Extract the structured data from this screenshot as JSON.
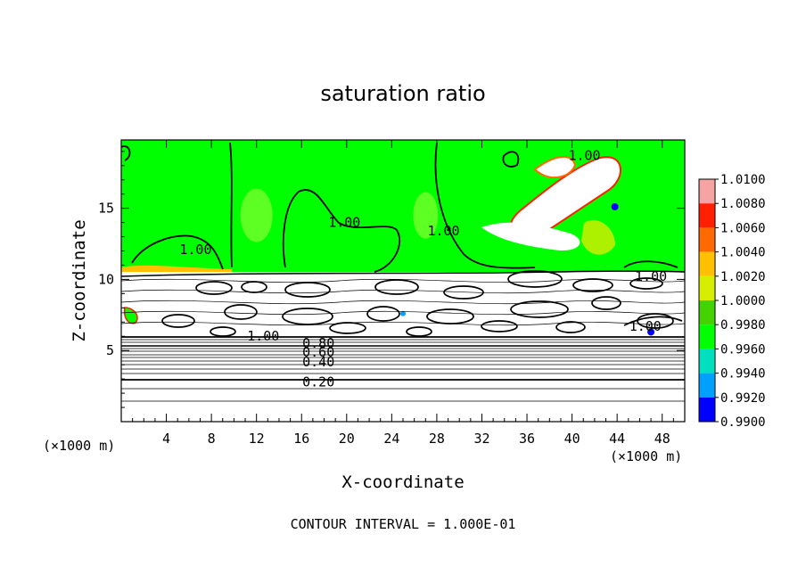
{
  "chart_data": {
    "type": "contour",
    "title": "saturation ratio",
    "xlabel": "X-coordinate",
    "ylabel": "Z-coordinate",
    "x_unit_left": "(×1000 m)",
    "x_unit_right": "(×1000 m)",
    "footer": "CONTOUR INTERVAL = 1.000E-01",
    "xlim": [
      0,
      50
    ],
    "ylim": [
      0,
      19.8
    ],
    "xticks": [
      4,
      8,
      12,
      16,
      20,
      24,
      28,
      32,
      36,
      40,
      44,
      48
    ],
    "yticks": [
      5,
      10,
      15
    ],
    "contour_labels": [
      {
        "text": "1.00",
        "x": 19.8,
        "y": 14.0
      },
      {
        "text": "1.00",
        "x": 6.6,
        "y": 12.1
      },
      {
        "text": "1.00",
        "x": 28.6,
        "y": 13.4
      },
      {
        "text": "1.00",
        "x": 41.1,
        "y": 18.7
      },
      {
        "text": "1.00",
        "x": 47.0,
        "y": 10.2
      },
      {
        "text": "1.00",
        "x": 46.5,
        "y": 6.7
      },
      {
        "text": "1.00",
        "x": 12.6,
        "y": 6.0
      },
      {
        "text": "0.80",
        "x": 17.5,
        "y": 5.5
      },
      {
        "text": "0.60",
        "x": 17.5,
        "y": 4.9
      },
      {
        "text": "0.40",
        "x": 17.5,
        "y": 4.2
      },
      {
        "text": "0.20",
        "x": 17.5,
        "y": 2.8
      }
    ],
    "colorbar": {
      "labels": [
        "1.0100",
        "1.0080",
        "1.0060",
        "1.0040",
        "1.0020",
        "1.0000",
        "0.9980",
        "0.9960",
        "0.9940",
        "0.9920",
        "0.9900"
      ],
      "colors": [
        "#f6a3a3",
        "#ff2000",
        "#ff6a00",
        "#ffc000",
        "#d8ee00",
        "#44d200",
        "#00ff00",
        "#00e0c0",
        "#00a0ff",
        "#0000ff",
        "#5000a0"
      ]
    },
    "field_color": "#00ff00"
  }
}
